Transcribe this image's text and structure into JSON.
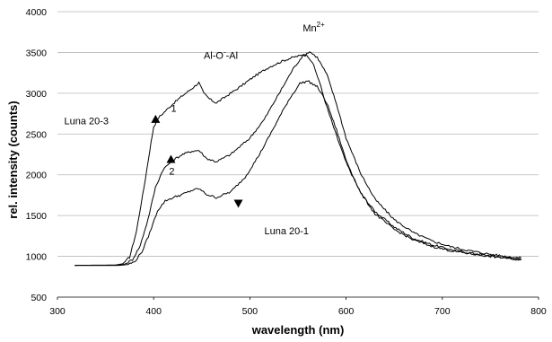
{
  "chart_data": {
    "type": "line",
    "title": "",
    "xlabel": "wavelength (nm)",
    "ylabel": "rel. intensity (counts)",
    "xlim": [
      300,
      800
    ],
    "ylim": [
      500,
      4000
    ],
    "xticks": [
      "300",
      "400",
      "500",
      "600",
      "700",
      "800"
    ],
    "yticks": [
      "500",
      "1000",
      "1500",
      "2000",
      "2500",
      "3000",
      "3500",
      "4000"
    ],
    "grid": "horizontal",
    "legend": "none",
    "series": [
      {
        "x": [
          318,
          360,
          368,
          375,
          382,
          390,
          396,
          400,
          405,
          412,
          420,
          430,
          440,
          447,
          452,
          458,
          465,
          475,
          490,
          505,
          520,
          535,
          545,
          552,
          556,
          560,
          565,
          572,
          580,
          590,
          600,
          615,
          630,
          650,
          670,
          690,
          710,
          730,
          750,
          770,
          782
        ],
        "values": [
          890,
          893,
          910,
          990,
          1300,
          1850,
          2300,
          2590,
          2700,
          2780,
          2870,
          2970,
          3060,
          3130,
          3000,
          2930,
          2880,
          2960,
          3080,
          3210,
          3320,
          3400,
          3440,
          3460,
          3470,
          3460,
          3380,
          3150,
          2830,
          2480,
          2150,
          1780,
          1550,
          1360,
          1220,
          1140,
          1080,
          1040,
          1005,
          975,
          960
        ]
      },
      {
        "x": [
          318,
          362,
          370,
          378,
          386,
          394,
          402,
          410,
          420,
          430,
          440,
          447,
          455,
          465,
          480,
          500,
          515,
          530,
          545,
          555,
          562,
          570,
          580,
          590,
          600,
          615,
          630,
          650,
          670,
          690,
          710,
          730,
          750,
          770,
          782
        ],
        "values": [
          890,
          890,
          905,
          960,
          1130,
          1450,
          1850,
          2070,
          2180,
          2250,
          2290,
          2300,
          2200,
          2160,
          2250,
          2450,
          2680,
          2990,
          3300,
          3460,
          3510,
          3440,
          3230,
          2870,
          2450,
          2020,
          1700,
          1450,
          1290,
          1185,
          1115,
          1065,
          1025,
          995,
          980
        ]
      },
      {
        "x": [
          318,
          365,
          372,
          380,
          388,
          396,
          404,
          412,
          420,
          430,
          440,
          447,
          455,
          465,
          480,
          495,
          510,
          525,
          540,
          552,
          560,
          570,
          580,
          590,
          600,
          615,
          630,
          650,
          670,
          690,
          710,
          730,
          750,
          770,
          782
        ],
        "values": [
          890,
          890,
          898,
          930,
          1060,
          1290,
          1560,
          1680,
          1720,
          1760,
          1810,
          1830,
          1760,
          1720,
          1790,
          1970,
          2250,
          2580,
          2910,
          3120,
          3150,
          3080,
          2880,
          2550,
          2180,
          1780,
          1520,
          1330,
          1200,
          1120,
          1065,
          1030,
          1000,
          975,
          955
        ]
      }
    ],
    "annotations": [
      {
        "text": "Al-O",
        "superscript": "-",
        "text_after": "-Al",
        "x": 452,
        "y": 3420
      },
      {
        "text": "Mn",
        "superscript": "2+",
        "x": 555,
        "y": 3760
      },
      {
        "text": "Luna 20-3",
        "x": 307,
        "y": 2620
      },
      {
        "text": "Luna 20-1",
        "x": 515,
        "y": 1270
      },
      {
        "text": "1",
        "x": 418,
        "y": 2775
      },
      {
        "text": "2",
        "x": 416,
        "y": 2000
      }
    ],
    "markers": [
      {
        "shape": "triangle-up",
        "x": 402,
        "y": 2680
      },
      {
        "shape": "triangle-up",
        "x": 418,
        "y": 2190
      },
      {
        "shape": "triangle-down",
        "x": 488,
        "y": 1650
      }
    ]
  }
}
